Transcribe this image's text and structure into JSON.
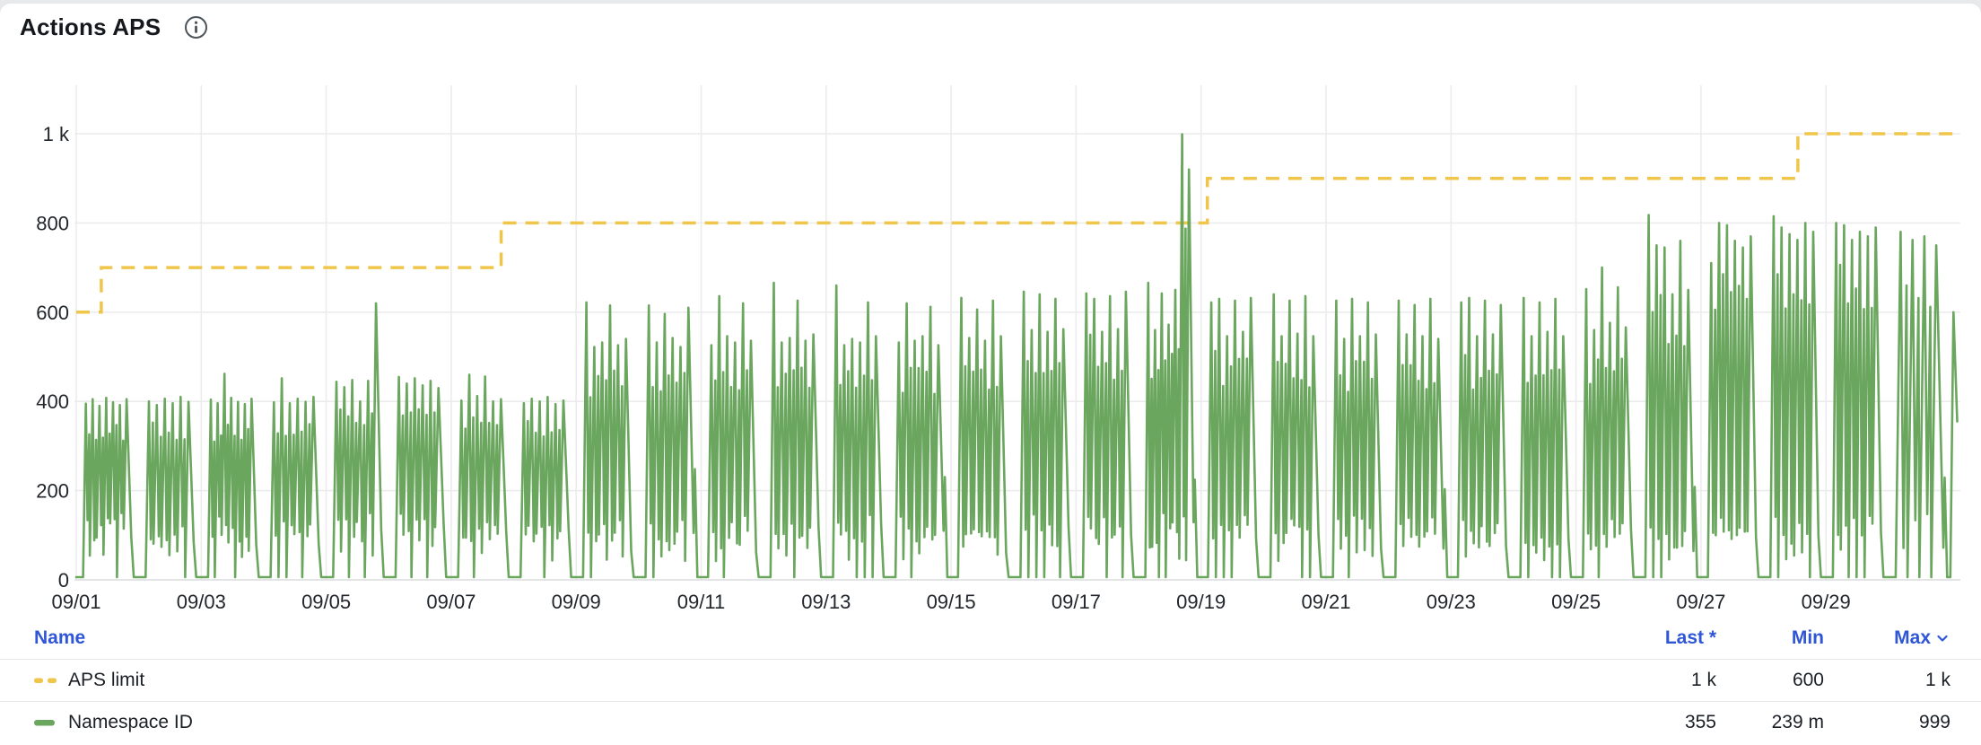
{
  "panel": {
    "title": "Actions APS"
  },
  "colors": {
    "limit_yellow": "#f0c64a",
    "series_green": "#6aa65e",
    "header_blue": "#2e56d6",
    "grid": "#ececee",
    "axis_line": "#d9dbde",
    "axis_text": "#21262c",
    "title_text": "#15191e",
    "legend_text": "#1b2026",
    "divider": "#e7e8ea",
    "info_icon": "#4b535b"
  },
  "chart_data": {
    "type": "line",
    "title": "Actions APS",
    "grid": true,
    "xlabel": "",
    "ylabel": "",
    "ylim": [
      0,
      1080
    ],
    "x_days_total": 30.15,
    "y_ticks": [
      {
        "label": "0",
        "value": 0
      },
      {
        "label": "200",
        "value": 200
      },
      {
        "label": "400",
        "value": 400
      },
      {
        "label": "600",
        "value": 600
      },
      {
        "label": "800",
        "value": 800
      },
      {
        "label": "1 k",
        "value": 1000
      }
    ],
    "x_ticks": [
      {
        "label": "09/01",
        "day": 0
      },
      {
        "label": "09/03",
        "day": 2
      },
      {
        "label": "09/05",
        "day": 4
      },
      {
        "label": "09/07",
        "day": 6
      },
      {
        "label": "09/09",
        "day": 8
      },
      {
        "label": "09/11",
        "day": 10
      },
      {
        "label": "09/13",
        "day": 12
      },
      {
        "label": "09/15",
        "day": 14
      },
      {
        "label": "09/17",
        "day": 16
      },
      {
        "label": "09/19",
        "day": 18
      },
      {
        "label": "09/21",
        "day": 20
      },
      {
        "label": "09/23",
        "day": 22
      },
      {
        "label": "09/25",
        "day": 24
      },
      {
        "label": "09/27",
        "day": 26
      },
      {
        "label": "09/29",
        "day": 28
      }
    ],
    "series": [
      {
        "name": "APS limit",
        "type": "step",
        "style": "dashed",
        "color": "#f0c64a",
        "points": [
          {
            "day": 0,
            "value": 600
          },
          {
            "day": 0.4,
            "value": 700
          },
          {
            "day": 6.8,
            "value": 800
          },
          {
            "day": 18.1,
            "value": 900
          },
          {
            "day": 27.55,
            "value": 1000
          },
          {
            "day": 30.15,
            "value": 1000
          }
        ]
      },
      {
        "name": "Namespace ID",
        "type": "spiky",
        "style": "solid",
        "color": "#6aa65e",
        "baseline": 6,
        "day_peaks": [
          [
            395,
            405,
            390,
            408,
            398,
            392,
            405
          ],
          [
            400,
            392,
            406,
            396,
            410,
            399
          ],
          [
            404,
            396,
            462,
            408,
            399,
            394,
            406
          ],
          [
            398,
            452,
            396,
            406,
            399,
            410
          ],
          [
            444,
            432,
            448,
            400,
            446,
            620
          ],
          [
            455,
            440,
            452,
            436,
            446,
            430
          ],
          [
            402,
            460,
            412,
            456,
            400,
            405
          ],
          [
            396,
            406,
            400,
            410,
            394,
            402
          ],
          [
            622,
            522,
            532,
            615,
            526,
            540
          ],
          [
            615,
            532,
            596,
            542,
            522,
            610
          ],
          [
            526,
            636,
            546,
            532,
            620,
            536
          ],
          [
            666,
            532,
            542,
            626,
            536,
            550
          ],
          [
            660,
            526,
            540,
            532,
            622,
            546
          ],
          [
            532,
            620,
            536,
            546,
            612,
            526
          ],
          [
            632,
            542,
            606,
            536,
            626,
            546
          ],
          [
            646,
            560,
            640,
            556,
            630,
            562
          ],
          [
            642,
            630,
            556,
            636,
            562,
            646
          ],
          [
            666,
            560,
            642,
            572,
            650,
            999,
            920
          ],
          [
            622,
            630,
            546,
            626,
            556,
            632
          ],
          [
            640,
            546,
            626,
            552,
            636,
            546
          ],
          [
            626,
            540,
            630,
            546,
            622,
            550
          ],
          [
            626,
            550,
            616,
            546,
            630,
            540
          ],
          [
            622,
            632,
            546,
            626,
            550,
            616
          ],
          [
            632,
            546,
            622,
            556,
            630,
            546
          ],
          [
            652,
            560,
            700,
            576,
            656,
            566
          ],
          [
            818,
            750,
            745,
            640,
            760,
            650
          ],
          [
            710,
            800,
            795,
            760,
            745,
            770
          ],
          [
            815,
            790,
            775,
            762,
            800,
            780
          ],
          [
            800,
            795,
            762,
            780,
            770,
            790
          ],
          [
            780,
            762,
            770,
            750
          ]
        ],
        "tail": [
          {
            "day": 30.04,
            "value": 600
          },
          {
            "day": 30.1,
            "value": 355
          }
        ],
        "last_value": 355
      }
    ]
  },
  "legend_table": {
    "columns": [
      {
        "label": "Name"
      },
      {
        "label": "Last *"
      },
      {
        "label": "Min"
      },
      {
        "label": "Max"
      }
    ],
    "rows": [
      {
        "name": "APS limit",
        "swatch": "dashed-yellow",
        "last": "1 k",
        "min": "600",
        "max": "1 k"
      },
      {
        "name": "Namespace ID",
        "swatch": "solid-green",
        "last": "355",
        "min": "239 m",
        "max": "999"
      }
    ]
  }
}
